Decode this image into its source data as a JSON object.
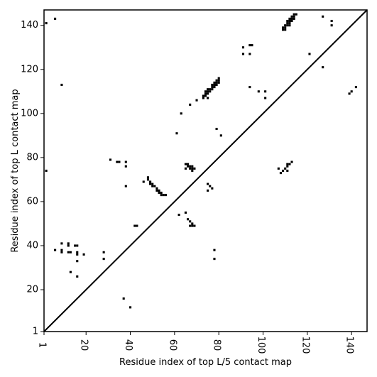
{
  "chart_data": {
    "type": "scatter",
    "marker": "square",
    "xlabel": "Residue index of top L/5 contact map",
    "ylabel": "Residue index of top L contact map",
    "xlim": [
      1,
      147
    ],
    "ylim": [
      1,
      147
    ],
    "xticks": [
      1,
      20,
      40,
      60,
      80,
      100,
      120,
      140
    ],
    "yticks": [
      1,
      20,
      40,
      60,
      80,
      100,
      120,
      140
    ],
    "grid": false,
    "diagonal": true,
    "colors": {
      "point": "#000000",
      "line": "#000000",
      "axis": "#000000"
    },
    "upper_points": [
      [
        2,
        141
      ],
      [
        6,
        143
      ],
      [
        9,
        113
      ],
      [
        2,
        74
      ],
      [
        28,
        37
      ],
      [
        28,
        34
      ],
      [
        31,
        79
      ],
      [
        34,
        78
      ],
      [
        35,
        78
      ],
      [
        38,
        78
      ],
      [
        38,
        76
      ],
      [
        38,
        67
      ],
      [
        46,
        69
      ],
      [
        48,
        71
      ],
      [
        48,
        70
      ],
      [
        49,
        69
      ],
      [
        49,
        68
      ],
      [
        50,
        68
      ],
      [
        50,
        67
      ],
      [
        51,
        67
      ],
      [
        52,
        66
      ],
      [
        52,
        65
      ],
      [
        53,
        65
      ],
      [
        53,
        64
      ],
      [
        54,
        64
      ],
      [
        54,
        63
      ],
      [
        55,
        63
      ],
      [
        56,
        63
      ],
      [
        61,
        91
      ],
      [
        63,
        100
      ],
      [
        65,
        77
      ],
      [
        66,
        77
      ],
      [
        66,
        76
      ],
      [
        67,
        76
      ],
      [
        67,
        75
      ],
      [
        68,
        75
      ],
      [
        68,
        76
      ],
      [
        68,
        74
      ],
      [
        69,
        75
      ],
      [
        65,
        75
      ],
      [
        67,
        104
      ],
      [
        70,
        106
      ],
      [
        73,
        107
      ],
      [
        73,
        108
      ],
      [
        74,
        108
      ],
      [
        74,
        109
      ],
      [
        74,
        110
      ],
      [
        75,
        109
      ],
      [
        75,
        110
      ],
      [
        75,
        111
      ],
      [
        76,
        110
      ],
      [
        76,
        111
      ],
      [
        77,
        111
      ],
      [
        77,
        112
      ],
      [
        77,
        113
      ],
      [
        78,
        112
      ],
      [
        78,
        113
      ],
      [
        78,
        114
      ],
      [
        79,
        113
      ],
      [
        79,
        114
      ],
      [
        79,
        115
      ],
      [
        80,
        114
      ],
      [
        80,
        115
      ],
      [
        80,
        116
      ],
      [
        75,
        107
      ],
      [
        79,
        93
      ],
      [
        81,
        90
      ],
      [
        91,
        127
      ],
      [
        91,
        130
      ],
      [
        94,
        127
      ],
      [
        94,
        131
      ],
      [
        95,
        131
      ],
      [
        94,
        112
      ],
      [
        98,
        110
      ],
      [
        101,
        110
      ],
      [
        101,
        107
      ],
      [
        109,
        138
      ],
      [
        109,
        139
      ],
      [
        110,
        138
      ],
      [
        110,
        139
      ],
      [
        110,
        140
      ],
      [
        111,
        140
      ],
      [
        111,
        141
      ],
      [
        111,
        142
      ],
      [
        112,
        140
      ],
      [
        112,
        141
      ],
      [
        112,
        142
      ],
      [
        112,
        143
      ],
      [
        113,
        142
      ],
      [
        113,
        143
      ],
      [
        113,
        144
      ],
      [
        114,
        143
      ],
      [
        114,
        144
      ],
      [
        114,
        145
      ],
      [
        115,
        145
      ],
      [
        121,
        127
      ],
      [
        127,
        144
      ],
      [
        127,
        121
      ],
      [
        131,
        142
      ],
      [
        131,
        140
      ],
      [
        139,
        109
      ],
      [
        140,
        110
      ],
      [
        142,
        112
      ]
    ],
    "lower_points": [
      [
        6,
        38
      ],
      [
        9,
        41
      ],
      [
        9,
        38
      ],
      [
        9,
        37
      ],
      [
        12,
        41
      ],
      [
        12,
        40
      ],
      [
        12,
        37
      ],
      [
        13,
        37
      ],
      [
        13,
        28
      ],
      [
        15,
        40
      ],
      [
        16,
        40
      ],
      [
        16,
        37
      ],
      [
        16,
        36
      ],
      [
        16,
        33
      ],
      [
        16,
        26
      ],
      [
        19,
        36
      ],
      [
        37,
        16
      ],
      [
        40,
        12
      ],
      [
        42,
        49
      ],
      [
        43,
        49
      ],
      [
        62,
        54
      ],
      [
        65,
        55
      ],
      [
        66,
        52
      ],
      [
        67,
        51
      ],
      [
        67,
        49
      ],
      [
        68,
        50
      ],
      [
        68,
        49
      ],
      [
        69,
        49
      ],
      [
        75,
        68
      ],
      [
        75,
        65
      ],
      [
        76,
        67
      ],
      [
        77,
        66
      ],
      [
        78,
        38
      ],
      [
        78,
        34
      ],
      [
        107,
        75
      ],
      [
        108,
        73
      ],
      [
        109,
        74
      ],
      [
        110,
        75
      ],
      [
        111,
        76
      ],
      [
        111,
        77
      ],
      [
        111,
        74
      ],
      [
        112,
        77
      ],
      [
        113,
        78
      ]
    ]
  }
}
